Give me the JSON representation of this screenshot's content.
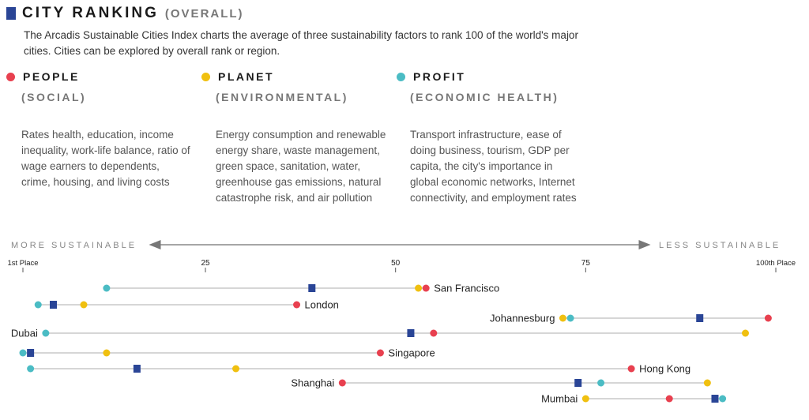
{
  "header": {
    "title": "CITY RANKING",
    "subtitle": "(OVERALL)",
    "intro": "The Arcadis Sustainable Cities Index charts the average of three sustainability factors to rank 100 of the world's major cities. Cities can be explored by overall rank or region."
  },
  "factors": [
    {
      "name": "PEOPLE",
      "sub": "(SOCIAL)",
      "color": "#e8404f",
      "desc": "Rates health, education, income inequality, work-life balance, ratio of wage earners to dependents, crime, housing, and living costs"
    },
    {
      "name": "PLANET",
      "sub": "(ENVIRONMENTAL)",
      "color": "#f0c010",
      "desc": "Energy consumption and renewable energy share, waste management, green space, sanitation, water, greenhouse gas emissions, natural catastrophe risk, and air pollution"
    },
    {
      "name": "PROFIT",
      "sub": "(ECONOMIC HEALTH)",
      "color": "#4bbcc4",
      "desc": "Transport infrastructure, ease of doing business, tourism, GDP per capita, the city's importance in global economic networks, Internet connectivity, and employment rates"
    }
  ],
  "chart_data": {
    "type": "scatter",
    "subtype": "dot-range",
    "x_left_label": "MORE SUSTAINABLE",
    "x_right_label": "LESS SUSTAINABLE",
    "xlim": [
      1,
      100
    ],
    "ticks": [
      {
        "value": 1,
        "label": "1st Place"
      },
      {
        "value": 25,
        "label": "25"
      },
      {
        "value": 50,
        "label": "50"
      },
      {
        "value": 75,
        "label": "75"
      },
      {
        "value": 100,
        "label": "100th Place"
      }
    ],
    "colors": {
      "overall": "#2a4596",
      "people": "#e8404f",
      "planet": "#f0c010",
      "profit": "#4bbcc4"
    },
    "cities": [
      {
        "name": "San Francisco",
        "label_side": "right",
        "overall": 39,
        "people": 54,
        "planet": 53,
        "profit": 12
      },
      {
        "name": "London",
        "label_side": "right",
        "overall": 5,
        "people": 37,
        "planet": 9,
        "profit": 3
      },
      {
        "name": "Johannesburg",
        "label_side": "left",
        "overall": 90,
        "people": 99,
        "planet": 72,
        "profit": 73
      },
      {
        "name": "Dubai",
        "label_side": "left",
        "overall": 52,
        "people": 55,
        "planet": 96,
        "profit": 4
      },
      {
        "name": "Singapore",
        "label_side": "right",
        "overall": 2,
        "people": 48,
        "planet": 12,
        "profit": 1
      },
      {
        "name": "Hong Kong",
        "label_side": "right",
        "overall": 16,
        "people": 81,
        "planet": 29,
        "profit": 2
      },
      {
        "name": "Shanghai",
        "label_side": "left",
        "overall": 74,
        "people": 43,
        "planet": 91,
        "profit": 77
      },
      {
        "name": "Mumbai",
        "label_side": "left",
        "overall": 92,
        "people": 86,
        "planet": 75,
        "profit": 93
      }
    ]
  }
}
